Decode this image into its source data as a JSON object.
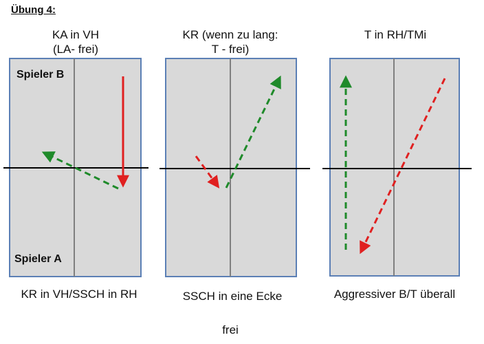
{
  "title": "Übung 4:",
  "panels": [
    {
      "caption_line1": "KA in VH",
      "caption_line2": "(LA- frei)",
      "bottom_label": "KR in VH/SSCH in RH",
      "player_top": "Spieler B",
      "player_bottom": "Spieler A"
    },
    {
      "caption_line1": "KR (wenn zu lang:",
      "caption_line2": "T - frei)",
      "bottom_label": "SSCH in eine Ecke"
    },
    {
      "caption_line1": "T in RH/TMi",
      "caption_line2": "",
      "bottom_label": "Aggressiver B/T überall"
    }
  ],
  "footer": "frei",
  "colors": {
    "table_fill": "#d9d9d9",
    "table_border": "#5b7fb5",
    "red_arrow": "#e02020",
    "green_arrow": "#1f8a2a"
  }
}
